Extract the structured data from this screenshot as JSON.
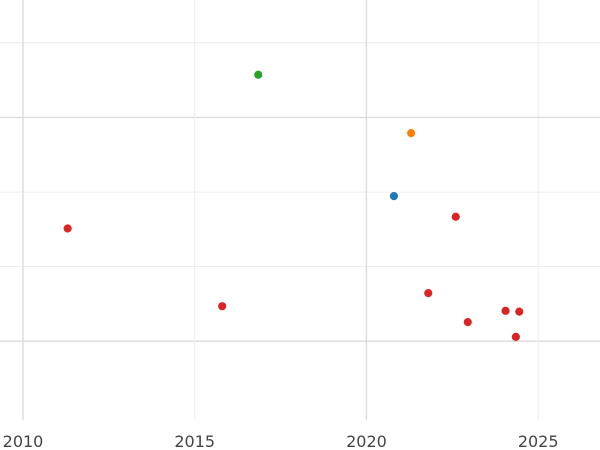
{
  "chart_data": {
    "type": "scatter",
    "title": "",
    "xlabel": "",
    "ylabel": "",
    "xlim": [
      2010,
      2026.8
    ],
    "xticks": [
      2010,
      2015,
      2020,
      2025
    ],
    "grid": true,
    "colors": {
      "blue": "#1f77b4",
      "orange": "#ff7f0e",
      "green": "#2ca02c",
      "red": "#d62728"
    },
    "points": [
      {
        "x": 2016.85,
        "y": 0.822,
        "color": "green"
      },
      {
        "x": 2021.3,
        "y": 0.683,
        "color": "orange"
      },
      {
        "x": 2020.8,
        "y": 0.533,
        "color": "blue"
      },
      {
        "x": 2011.3,
        "y": 0.456,
        "color": "red"
      },
      {
        "x": 2022.6,
        "y": 0.484,
        "color": "red"
      },
      {
        "x": 2015.8,
        "y": 0.271,
        "color": "red"
      },
      {
        "x": 2021.8,
        "y": 0.302,
        "color": "red"
      },
      {
        "x": 2024.05,
        "y": 0.26,
        "color": "red"
      },
      {
        "x": 2024.45,
        "y": 0.258,
        "color": "red"
      },
      {
        "x": 2022.95,
        "y": 0.233,
        "color": "red"
      },
      {
        "x": 2024.35,
        "y": 0.198,
        "color": "red"
      }
    ]
  }
}
